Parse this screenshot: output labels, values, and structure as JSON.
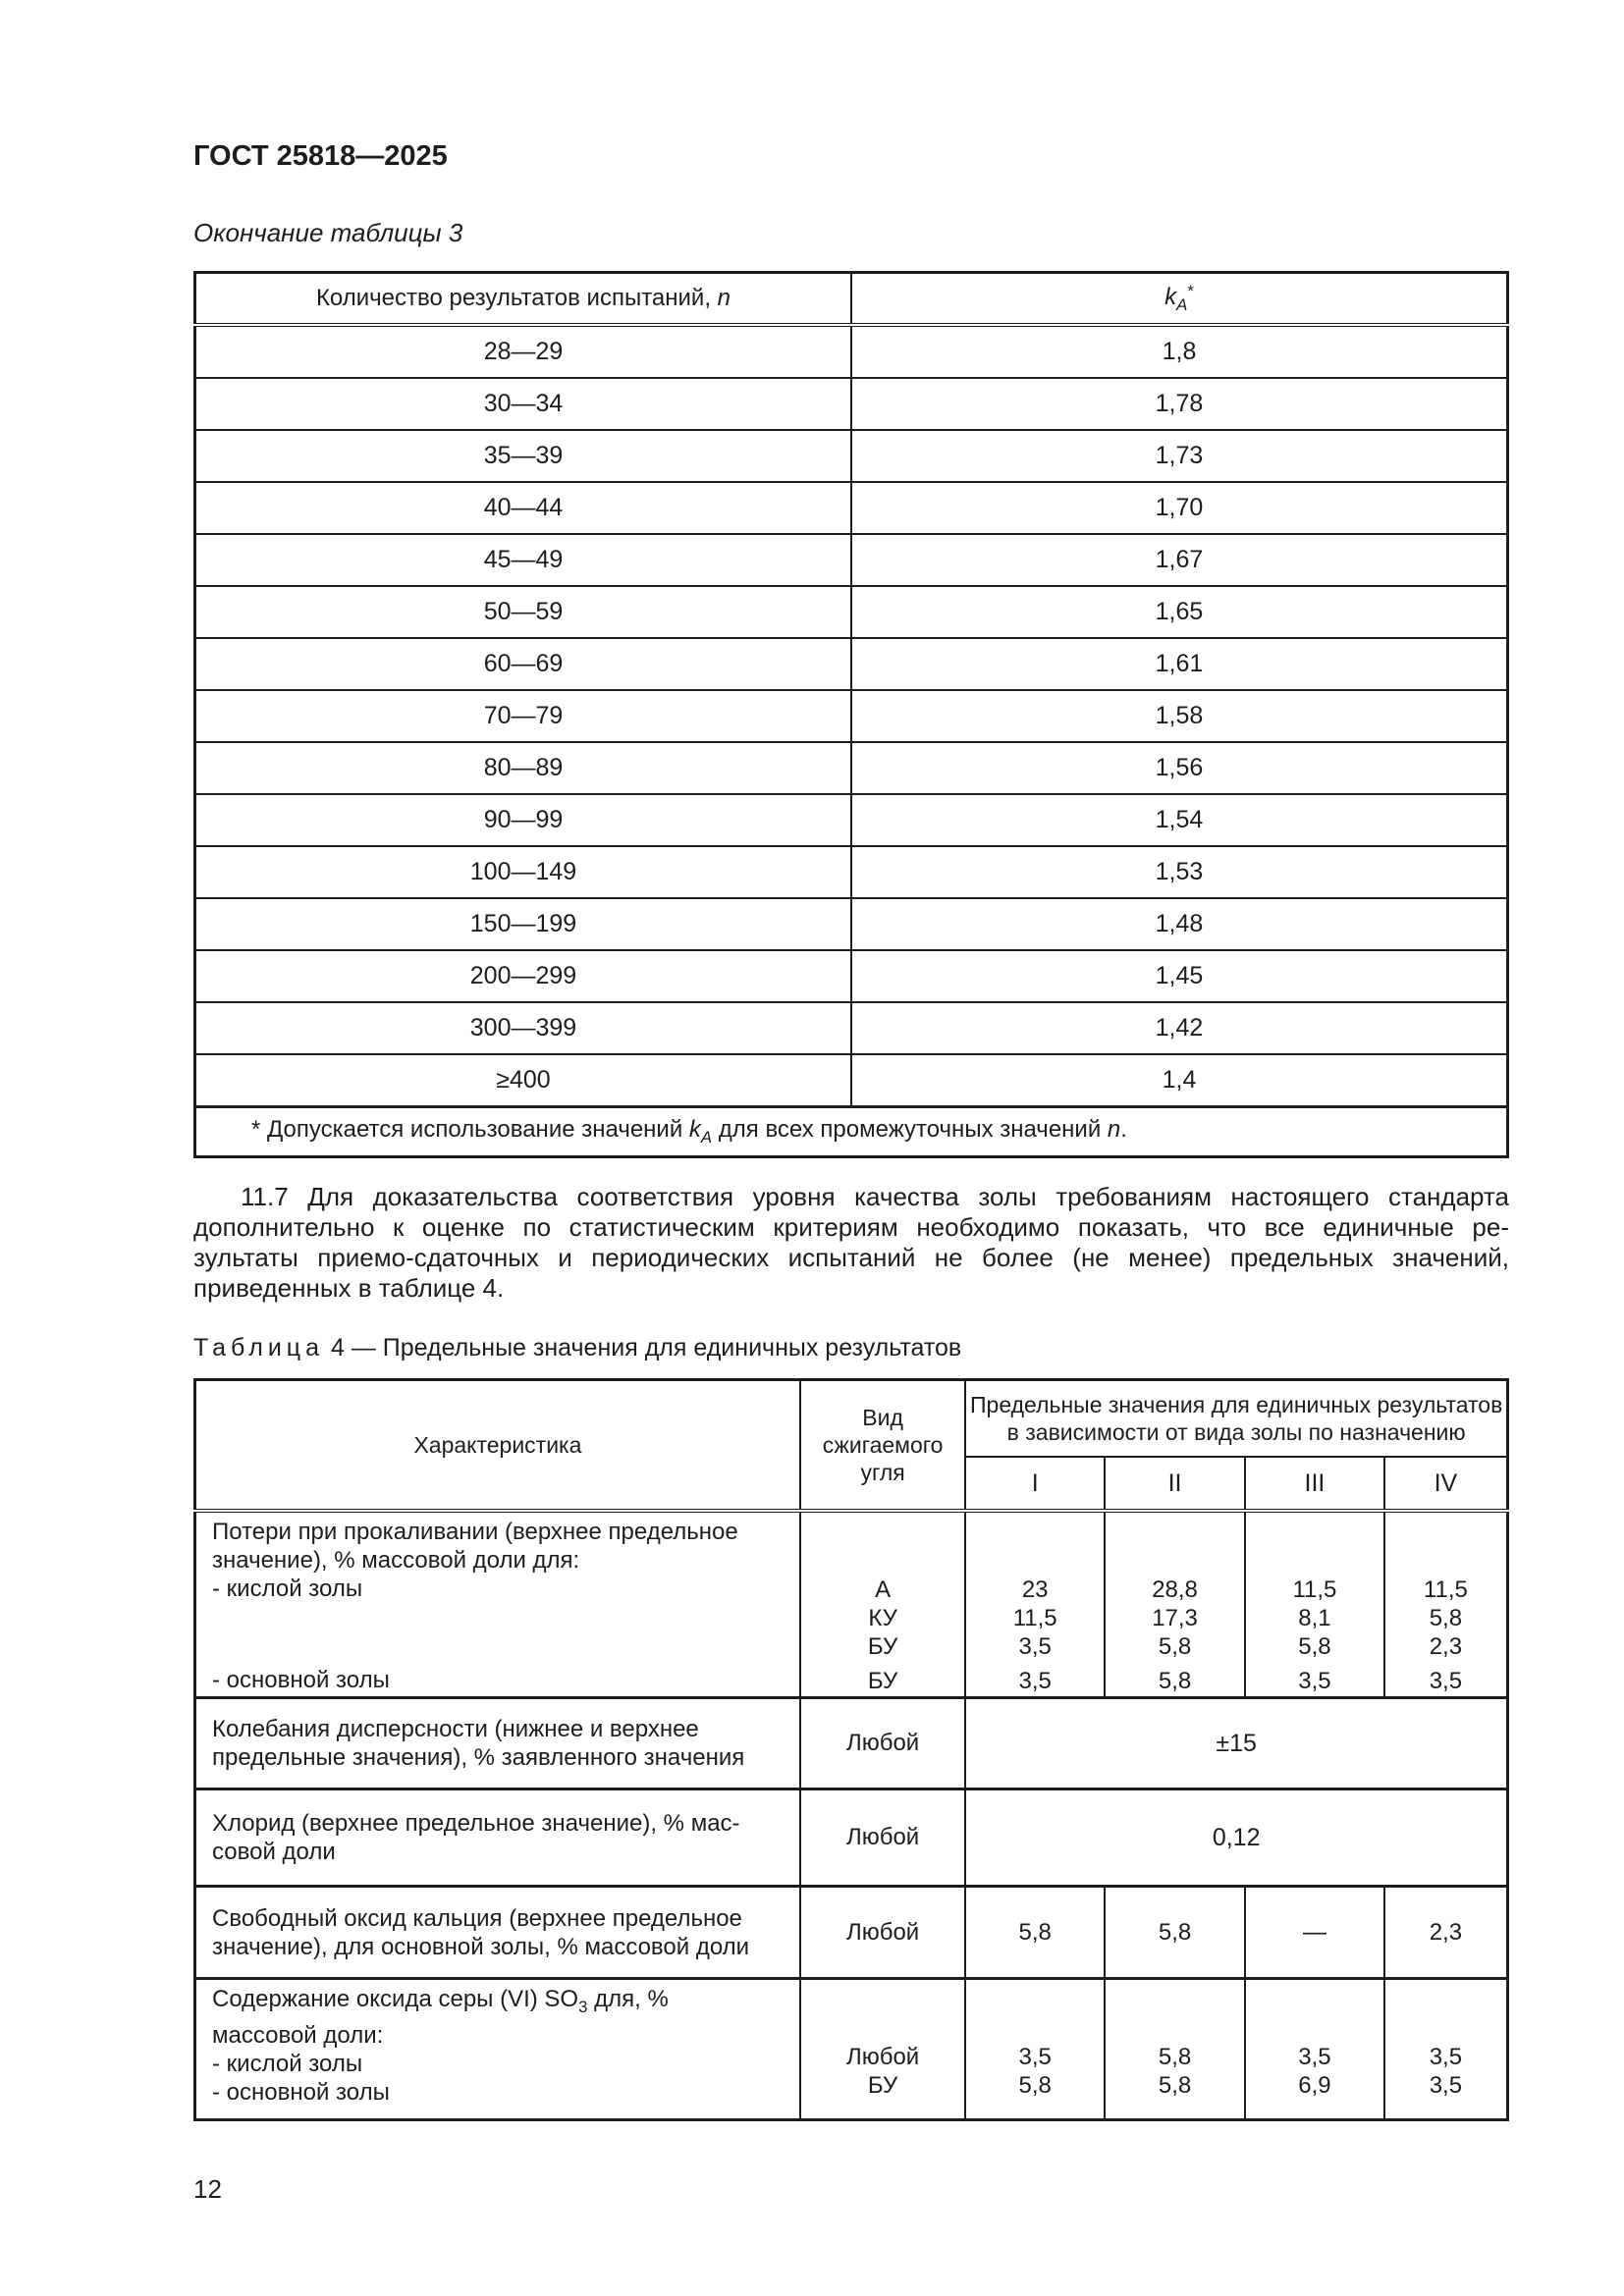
{
  "page": {
    "doc_code": "ГОСТ 25818—2025",
    "page_number": "12"
  },
  "table3": {
    "caption": "Окончание таблицы 3",
    "header": {
      "col1_text": "Количество результатов испытаний, ",
      "col1_var": "n",
      "k": "k",
      "k_sub": "A",
      "k_sup": "*"
    },
    "rows": [
      [
        "28—29",
        "1,8"
      ],
      [
        "30—34",
        "1,78"
      ],
      [
        "35—39",
        "1,73"
      ],
      [
        "40—44",
        "1,70"
      ],
      [
        "45—49",
        "1,67"
      ],
      [
        "50—59",
        "1,65"
      ],
      [
        "60—69",
        "1,61"
      ],
      [
        "70—79",
        "1,58"
      ],
      [
        "80—89",
        "1,56"
      ],
      [
        "90—99",
        "1,54"
      ],
      [
        "100—149",
        "1,53"
      ],
      [
        "150—199",
        "1,48"
      ],
      [
        "200—299",
        "1,45"
      ],
      [
        "300—399",
        "1,42"
      ],
      [
        "≥400",
        "1,4"
      ]
    ],
    "footnote": {
      "pre": "* Допускается использование значений ",
      "k": "k",
      "k_sub": "A",
      "mid": " для всех промежуточных значений ",
      "var": "n",
      "end": "."
    }
  },
  "paragraph_11_7": {
    "line1": "11.7 Для доказательства соответствия уровня качества золы требованиям настоящего стандарта",
    "line2": "дополнительно к оценке по статистическим критериям необходимо показать, что все единичные ре-",
    "line3": "зультаты приемо-сдаточных и периодических испытаний не более (не менее) предельных значений,",
    "line4": "приведенных в таблице 4."
  },
  "table4": {
    "caption": {
      "label": "Таблица",
      "rest": " 4 — Предельные значения для единичных результатов"
    },
    "header": {
      "characteristic": "Характеристика",
      "fuel_lines": [
        "Вид",
        "сжигаемого",
        "угля"
      ],
      "limits_line1": "Предельные значения для единичных результатов",
      "limits_line2": "в зависимости от вида золы по назначению",
      "subcols": [
        "I",
        "II",
        "III",
        "IV"
      ]
    },
    "loi": {
      "intro_line1": "Потери при прокаливании (верхнее предельное",
      "intro_line2": "значение), % массовой доли для:",
      "acid_label": "- кислой золы",
      "basic_label": "- основной золы",
      "fuels": [
        "А",
        "КУ",
        "БУ",
        "БУ"
      ],
      "I": [
        "23",
        "11,5",
        "3,5",
        "3,5"
      ],
      "II": [
        "28,8",
        "17,3",
        "5,8",
        "5,8"
      ],
      "III": [
        "11,5",
        "8,1",
        "5,8",
        "3,5"
      ],
      "IV": [
        "11,5",
        "5,8",
        "2,3",
        "3,5"
      ]
    },
    "dispersion": {
      "line1": "Колебания дисперсности (нижнее и верхнее",
      "line2": "предельные значения), % заявленного значения",
      "fuel": "Любой",
      "value": "±15"
    },
    "chloride": {
      "line1": "Хлорид (верхнее предельное значение), % мас-",
      "line2": "совой доли",
      "fuel": "Любой",
      "value": "0,12"
    },
    "free_cao": {
      "line1": "Свободный оксид кальция (верхнее предельное",
      "line2": "значение), для основной золы, % массовой доли",
      "fuel": "Любой",
      "values": [
        "5,8",
        "5,8",
        "—",
        "2,3"
      ]
    },
    "so3": {
      "intro_pre": "Содержание оксида серы (VI) SO",
      "intro_sub": "3",
      "intro_post": " для, %",
      "intro_line2": "массовой доли:",
      "acid_label": "- кислой золы",
      "basic_label": "- основной золы",
      "acid": [
        "Любой",
        "3,5",
        "5,8",
        "3,5",
        "3,5"
      ],
      "basic": [
        "БУ",
        "5,8",
        "5,8",
        "6,9",
        "3,5"
      ]
    }
  }
}
